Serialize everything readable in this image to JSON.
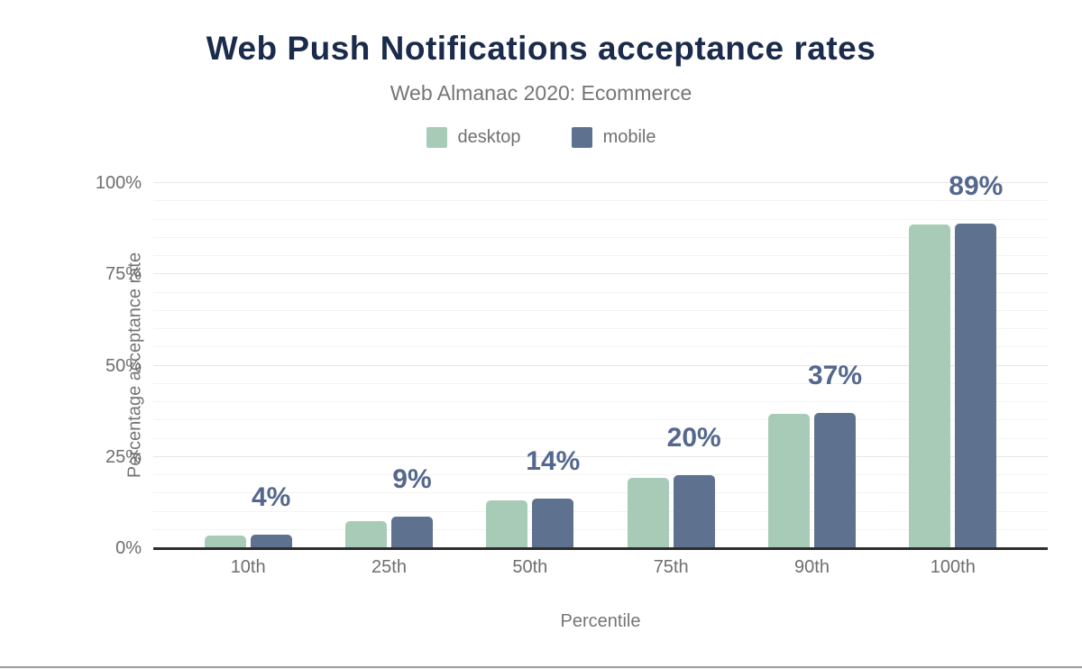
{
  "chart_data": {
    "type": "bar",
    "title": "Web Push Notifications acceptance rates",
    "subtitle": "Web Almanac 2020: Ecommerce",
    "xlabel": "Percentile",
    "ylabel": "Percentage acceptance rate",
    "categories": [
      "10th",
      "25th",
      "50th",
      "75th",
      "90th",
      "100th"
    ],
    "series": [
      {
        "name": "desktop",
        "color": "#a8cbb7",
        "values": [
          3.4,
          7.4,
          13.1,
          19.3,
          36.8,
          88.6
        ]
      },
      {
        "name": "mobile",
        "color": "#5e7290",
        "values": [
          3.6,
          8.6,
          13.6,
          20.0,
          37.0,
          89.0
        ]
      }
    ],
    "bar_labels": [
      "4%",
      "9%",
      "14%",
      "20%",
      "37%",
      "89%"
    ],
    "y_ticks": [
      "0%",
      "25%",
      "50%",
      "75%",
      "100%"
    ],
    "ylim": [
      0,
      100
    ],
    "grid": {
      "minor_step": 5,
      "major_step": 25,
      "on": true
    },
    "legend_position": "top"
  },
  "colors": {
    "title": "#1b2b4c",
    "subtitle": "#757575",
    "axis_text": "#6e6e6e",
    "data_label": "#54678e",
    "axis_line": "#2d2d2d",
    "gridline_minor": "#f3f3f3",
    "gridline_major": "#e7e7e7",
    "bottom_edge": "#9b9b9b",
    "background": "#ffffff"
  }
}
